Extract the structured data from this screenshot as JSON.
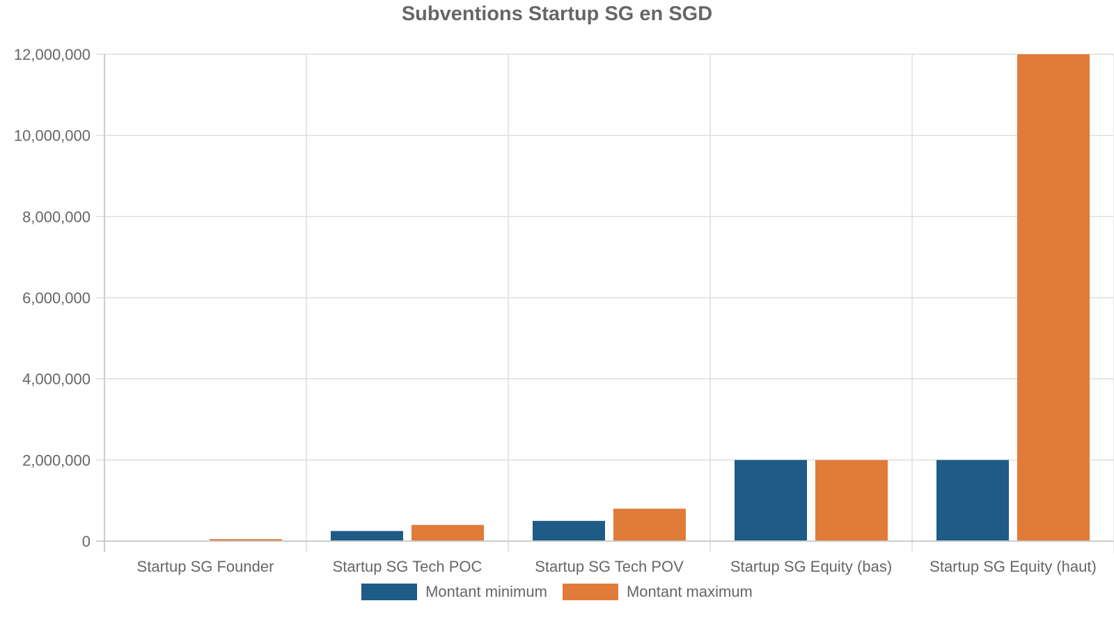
{
  "chart_data": {
    "type": "bar",
    "title": "Subventions Startup SG en SGD",
    "xlabel": "",
    "ylabel": "",
    "categories": [
      "Startup SG Founder",
      "Startup SG Tech POC",
      "Startup SG Tech POV",
      "Startup SG Equity (bas)",
      "Startup SG Equity (haut)"
    ],
    "series": [
      {
        "name": "Montant minimum",
        "color": "#1f5b87",
        "values": [
          10000,
          250000,
          500000,
          2000000,
          2000000
        ]
      },
      {
        "name": "Montant maximum",
        "color": "#e07b39",
        "values": [
          50000,
          400000,
          800000,
          2000000,
          12000000
        ]
      }
    ],
    "ylim": [
      0,
      12000000
    ],
    "yticks": [
      0,
      2000000,
      4000000,
      6000000,
      8000000,
      10000000,
      12000000
    ],
    "ytick_labels": [
      "0",
      "2,000,000",
      "4,000,000",
      "6,000,000",
      "8,000,000",
      "10,000,000",
      "12,000,000"
    ],
    "grid": true,
    "legend_position": "bottom"
  }
}
